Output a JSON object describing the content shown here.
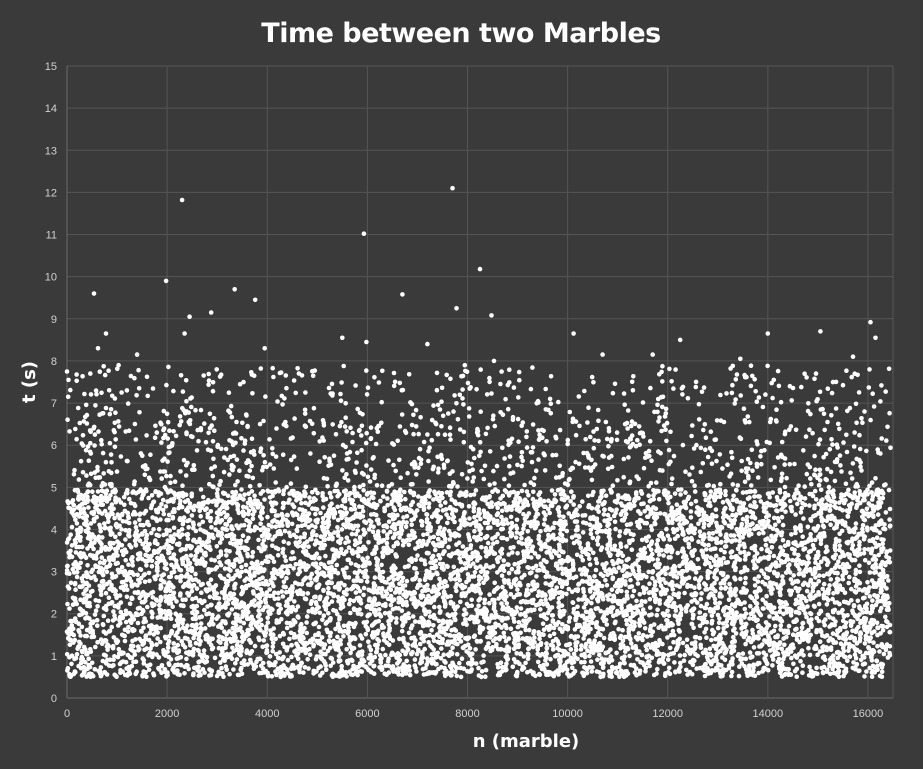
{
  "chart_data": {
    "type": "scatter",
    "title": "Time between two Marbles",
    "xlabel": "n (marble)",
    "ylabel": "t (s)",
    "xlim": [
      0,
      16500
    ],
    "ylim": [
      0,
      15
    ],
    "x_ticks": [
      0,
      2000,
      4000,
      6000,
      8000,
      10000,
      12000,
      14000,
      16000
    ],
    "y_ticks": [
      0,
      1,
      2,
      3,
      4,
      5,
      6,
      7,
      8,
      9,
      10,
      11,
      12,
      13,
      14,
      15
    ],
    "grid": true,
    "legend": "none",
    "marker_color": "#ffffff",
    "background_color": "#3a3a3a",
    "n_points": 16500,
    "distribution": "dense band between 0.5 and 5.0 s across all n; sparser points from 5 to 8 s",
    "notable_points": [
      {
        "x": 0,
        "y": 7.75
      },
      {
        "x": 30,
        "y": 7.55
      },
      {
        "x": 540,
        "y": 9.6
      },
      {
        "x": 620,
        "y": 8.3
      },
      {
        "x": 780,
        "y": 8.65
      },
      {
        "x": 1400,
        "y": 8.15
      },
      {
        "x": 1980,
        "y": 9.9
      },
      {
        "x": 2300,
        "y": 11.82
      },
      {
        "x": 2350,
        "y": 8.65
      },
      {
        "x": 2450,
        "y": 9.05
      },
      {
        "x": 2880,
        "y": 9.15
      },
      {
        "x": 3350,
        "y": 9.7
      },
      {
        "x": 3760,
        "y": 9.45
      },
      {
        "x": 3950,
        "y": 8.3
      },
      {
        "x": 5500,
        "y": 8.55
      },
      {
        "x": 5930,
        "y": 11.02
      },
      {
        "x": 5980,
        "y": 8.45
      },
      {
        "x": 6700,
        "y": 9.58
      },
      {
        "x": 7200,
        "y": 8.4
      },
      {
        "x": 7700,
        "y": 12.1
      },
      {
        "x": 7780,
        "y": 9.25
      },
      {
        "x": 8250,
        "y": 10.18
      },
      {
        "x": 8480,
        "y": 9.08
      },
      {
        "x": 8530,
        "y": 8.0
      },
      {
        "x": 10120,
        "y": 8.65
      },
      {
        "x": 10700,
        "y": 8.15
      },
      {
        "x": 11700,
        "y": 8.15
      },
      {
        "x": 12250,
        "y": 8.5
      },
      {
        "x": 13450,
        "y": 8.05
      },
      {
        "x": 14000,
        "y": 8.65
      },
      {
        "x": 15050,
        "y": 8.7
      },
      {
        "x": 15700,
        "y": 8.1
      },
      {
        "x": 16050,
        "y": 8.92
      },
      {
        "x": 16150,
        "y": 8.55
      }
    ]
  }
}
